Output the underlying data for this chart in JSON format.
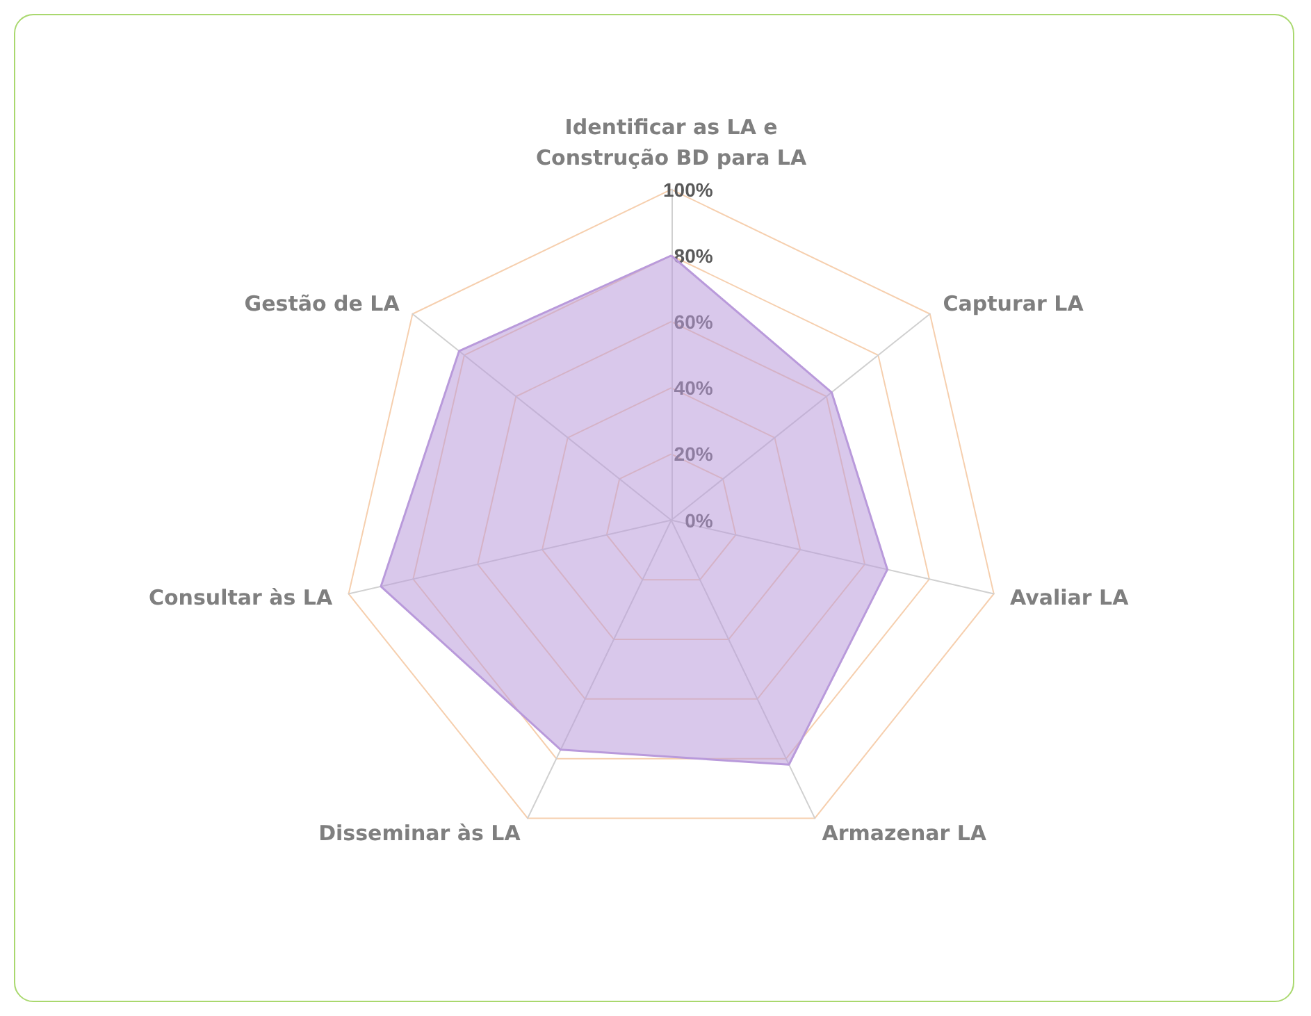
{
  "chart_data": {
    "type": "radar",
    "categories": [
      "Identificar as LA e\nConstrução BD para LA",
      "Capturar LA",
      "Avaliar LA",
      "Armazenar LA",
      "Disseminar às LA",
      "Consultar às LA",
      "Gestão de LA"
    ],
    "series": [
      {
        "color": "#b99adb",
        "values": [
          80,
          62,
          67,
          82,
          77,
          90,
          82
        ]
      }
    ],
    "ylim": [
      0,
      100
    ],
    "yticks": [
      {
        "value": 0,
        "label": "0%"
      },
      {
        "value": 20,
        "label": "20%"
      },
      {
        "value": 40,
        "label": "40%"
      },
      {
        "value": 60,
        "label": "60%"
      },
      {
        "value": 80,
        "label": "80%"
      },
      {
        "value": 100,
        "label": "100%"
      }
    ],
    "grid": true,
    "marker": "none",
    "legend": false
  }
}
